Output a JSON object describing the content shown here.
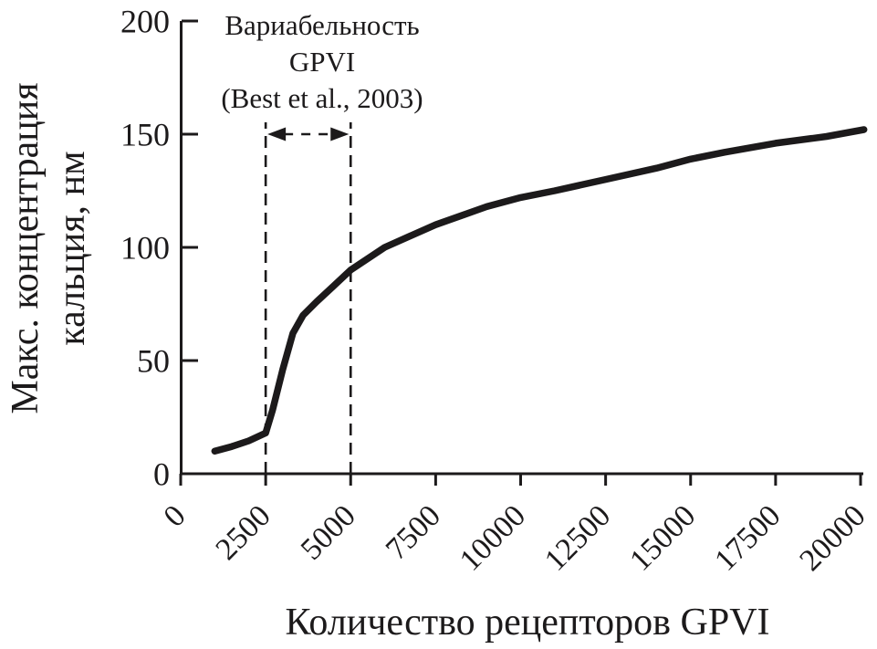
{
  "figure": {
    "background_color": "#ffffff",
    "ink_color": "#1c1a1b"
  },
  "chart_data": {
    "type": "line",
    "title": "",
    "xlabel": "Количество рецепторов GPVI",
    "ylabel_lines": [
      "Макс. концентрация",
      "кальция, нм"
    ],
    "xlim": [
      0,
      20000
    ],
    "ylim": [
      0,
      200
    ],
    "xticks": [
      0,
      2500,
      5000,
      7500,
      10000,
      12500,
      15000,
      17500,
      20000
    ],
    "yticks": [
      0,
      50,
      100,
      150,
      200
    ],
    "grid": false,
    "legend": null,
    "series": [
      {
        "name": "max-calcium-vs-gpvi-receptors",
        "color": "#1c1a1b",
        "points": [
          [
            1000,
            10
          ],
          [
            1500,
            12
          ],
          [
            2000,
            14.5
          ],
          [
            2500,
            18
          ],
          [
            2700,
            28
          ],
          [
            3000,
            46
          ],
          [
            3300,
            62
          ],
          [
            3600,
            70
          ],
          [
            4000,
            76
          ],
          [
            4500,
            83
          ],
          [
            5000,
            90
          ],
          [
            5500,
            95
          ],
          [
            6000,
            100
          ],
          [
            6750,
            105
          ],
          [
            7500,
            110
          ],
          [
            8250,
            114
          ],
          [
            9000,
            118
          ],
          [
            10000,
            122
          ],
          [
            11000,
            125
          ],
          [
            12500,
            130
          ],
          [
            14000,
            135
          ],
          [
            15000,
            139
          ],
          [
            16000,
            142
          ],
          [
            17500,
            146
          ],
          [
            19000,
            149
          ],
          [
            20100,
            152
          ]
        ]
      }
    ],
    "annotation": {
      "lines": [
        "Вариабельность",
        "GPVI",
        "(Best et al., 2003)"
      ],
      "range_x": [
        2500,
        5000
      ],
      "style": "dashed vertical guides with double-headed dashed arrow"
    }
  }
}
